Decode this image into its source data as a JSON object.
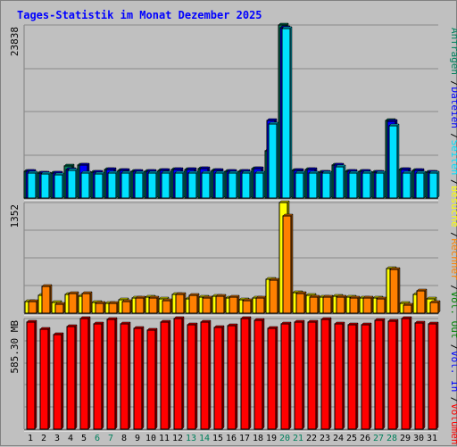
{
  "chart_data": [
    {
      "type": "bar",
      "title": "Tages-Statistik im Monat Dezember 2025",
      "categories": [
        "1",
        "2",
        "3",
        "4",
        "5",
        "6",
        "7",
        "8",
        "9",
        "10",
        "11",
        "12",
        "13",
        "14",
        "15",
        "16",
        "17",
        "18",
        "19",
        "20",
        "21",
        "22",
        "23",
        "24",
        "25",
        "26",
        "27",
        "28",
        "29",
        "30",
        "31"
      ],
      "weekend_categories": [
        "6",
        "7",
        "13",
        "14",
        "20",
        "21",
        "27",
        "28"
      ],
      "ylabel": "23838",
      "ylim": [
        0,
        23838
      ],
      "grid": true,
      "series": [
        {
          "name": "Anfragen",
          "color": "#00805c",
          "values": [
            3700,
            3500,
            3400,
            4400,
            4500,
            3600,
            3900,
            3800,
            3700,
            3700,
            3800,
            3900,
            3900,
            4100,
            3800,
            3700,
            3700,
            4100,
            6500,
            23838,
            3800,
            3900,
            3600,
            4500,
            3700,
            3700,
            3600,
            10700,
            3900,
            3800,
            3600
          ]
        },
        {
          "name": "Dateien",
          "color": "#0000ff",
          "values": [
            3700,
            3500,
            3400,
            3900,
            4500,
            3600,
            3900,
            3800,
            3700,
            3700,
            3800,
            3900,
            3900,
            4100,
            3800,
            3700,
            3700,
            4100,
            10700,
            23500,
            3800,
            3900,
            3600,
            4500,
            3700,
            3700,
            3600,
            10600,
            3900,
            3800,
            3600
          ]
        },
        {
          "name": "Seiten",
          "color": "#00e0ff",
          "values": [
            3400,
            3300,
            3200,
            3800,
            3500,
            3300,
            3500,
            3400,
            3400,
            3400,
            3500,
            3500,
            3500,
            3500,
            3500,
            3400,
            3400,
            3500,
            10200,
            23300,
            3400,
            3500,
            3400,
            4300,
            3400,
            3400,
            3400,
            10000,
            3400,
            3400,
            3400
          ]
        }
      ]
    },
    {
      "type": "bar",
      "ylabel": "1352",
      "ylim": [
        0,
        1352
      ],
      "grid": true,
      "series": [
        {
          "name": "Besuche",
          "color": "#ffff00",
          "values": [
            140,
            220,
            130,
            230,
            210,
            130,
            120,
            160,
            190,
            200,
            170,
            230,
            170,
            200,
            210,
            190,
            160,
            190,
            410,
            1352,
            250,
            220,
            200,
            210,
            200,
            190,
            190,
            550,
            120,
            230,
            170
          ]
        },
        {
          "name": "Rechner",
          "color": "#ff8000",
          "values": [
            140,
            330,
            110,
            240,
            240,
            120,
            120,
            140,
            190,
            190,
            150,
            230,
            220,
            180,
            210,
            200,
            150,
            190,
            400,
            1190,
            240,
            200,
            200,
            200,
            180,
            190,
            170,
            530,
            100,
            270,
            130
          ]
        }
      ]
    },
    {
      "type": "bar",
      "ylabel": "585.30 MB",
      "ylim": [
        0,
        585.3
      ],
      "grid": true,
      "series": [
        {
          "name": "Vol. Out",
          "color": "#008000",
          "values": []
        },
        {
          "name": "Vol. In",
          "color": "#0000ff",
          "values": []
        },
        {
          "name": "Volumen",
          "color": "#ff0000",
          "values": [
            567,
            527,
            500,
            541,
            585,
            557,
            581,
            557,
            533,
            526,
            565,
            585,
            554,
            568,
            539,
            546,
            585,
            578,
            535,
            556,
            565,
            567,
            579,
            556,
            554,
            554,
            578,
            571,
            585,
            562,
            555
          ]
        }
      ]
    }
  ],
  "legend": {
    "right_top": [
      {
        "text": "Anfragen",
        "color": "#00805c"
      },
      {
        "text": "Dateien",
        "color": "#0000ff"
      },
      {
        "text": "Seiten",
        "color": "#00e0ff"
      },
      {
        "text": "Besuche",
        "color": "#ffff00"
      },
      {
        "text": "Rechner",
        "color": "#ff8000"
      },
      {
        "text": "Vol. Out",
        "color": "#008000"
      },
      {
        "text": "Vol. In",
        "color": "#0000ff"
      },
      {
        "text": "Volumen",
        "color": "#ff0000"
      }
    ]
  },
  "colors": {
    "title": "#0000ff",
    "weekday_label": "#000000",
    "weekend_label": "#00805c",
    "separator": "#808080",
    "grid": "#808080",
    "plot_bg": "#c0c0c0"
  }
}
